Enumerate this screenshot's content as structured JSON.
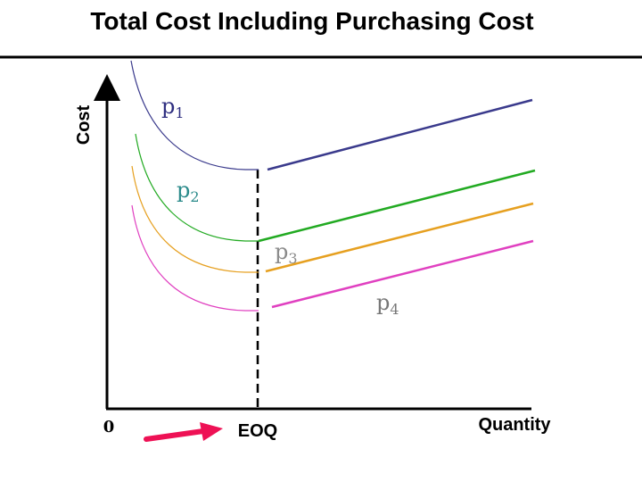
{
  "title": "Total Cost Including Purchasing Cost",
  "y_axis_label": "Cost",
  "x_axis_label": "Quantity",
  "origin_label": "0",
  "eoq_label": "EOQ",
  "curves": [
    {
      "id": "p1",
      "label": "p",
      "sub": "1",
      "color": "#3a3a8c",
      "label_color": "#2e2e80"
    },
    {
      "id": "p2",
      "label": "p",
      "sub": "2",
      "color": "#22aa22",
      "label_color": "#2a8a8a"
    },
    {
      "id": "p3",
      "label": "p",
      "sub": "3",
      "color": "#e6a020",
      "label_color": "#8a8a8a"
    },
    {
      "id": "p4",
      "label": "p",
      "sub": "4",
      "color": "#e040c0",
      "label_color": "#777777"
    }
  ],
  "arrow_color": "#ee1155"
}
